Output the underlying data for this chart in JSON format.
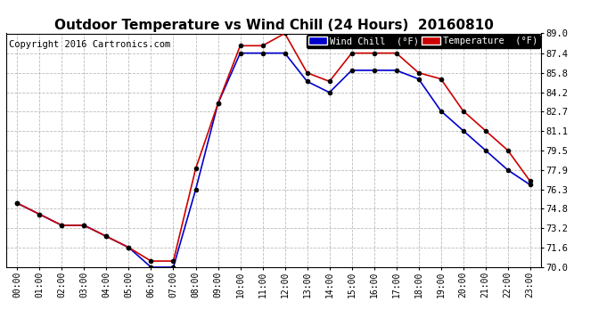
{
  "title": "Outdoor Temperature vs Wind Chill (24 Hours)  20160810",
  "copyright": "Copyright 2016 Cartronics.com",
  "legend_wind_chill": "Wind Chill  (°F)",
  "legend_temperature": "Temperature  (°F)",
  "x_labels": [
    "00:00",
    "01:00",
    "02:00",
    "03:00",
    "04:00",
    "05:00",
    "06:00",
    "07:00",
    "08:00",
    "09:00",
    "10:00",
    "11:00",
    "12:00",
    "13:00",
    "14:00",
    "15:00",
    "16:00",
    "17:00",
    "18:00",
    "19:00",
    "20:00",
    "21:00",
    "22:00",
    "23:00"
  ],
  "temperature": [
    75.2,
    74.3,
    73.4,
    73.4,
    72.5,
    71.6,
    70.5,
    70.5,
    78.0,
    83.3,
    88.0,
    88.0,
    89.0,
    85.8,
    85.1,
    87.4,
    87.4,
    87.4,
    85.8,
    85.3,
    82.7,
    81.1,
    79.5,
    77.0
  ],
  "wind_chill": [
    75.2,
    74.3,
    73.4,
    73.4,
    72.5,
    71.6,
    70.0,
    70.0,
    76.3,
    83.3,
    87.4,
    87.4,
    87.4,
    85.1,
    84.2,
    86.0,
    86.0,
    86.0,
    85.3,
    82.7,
    81.1,
    79.5,
    77.9,
    76.7
  ],
  "ylim_min": 70.0,
  "ylim_max": 89.0,
  "yticks": [
    70.0,
    71.6,
    73.2,
    74.8,
    76.3,
    77.9,
    79.5,
    81.1,
    82.7,
    84.2,
    85.8,
    87.4,
    89.0
  ],
  "temp_color": "#cc0000",
  "wind_color": "#0000cc",
  "marker_color": "#000000",
  "bg_color": "#ffffff",
  "grid_color": "#bbbbbb",
  "title_fontsize": 11,
  "copyright_fontsize": 7.5
}
